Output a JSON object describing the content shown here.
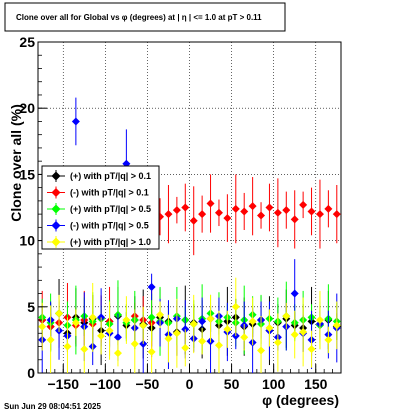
{
  "title": "Clone  over all for Global vs φ  (degrees) at |  η  | <= 1.0 at pT > 0.11",
  "footer": "Sun Jun 29 08:04:51 2025",
  "chart_data": {
    "type": "scatter",
    "xlabel": "φ  (degrees)",
    "ylabel": "Clone  over all (%)",
    "xlim": [
      -180,
      180
    ],
    "ylim": [
      0,
      25
    ],
    "xticks": [
      -150,
      -100,
      -50,
      0,
      50,
      100,
      150
    ],
    "yticks": [
      0,
      5,
      10,
      15,
      20,
      25
    ],
    "grid": true,
    "legend_position": "left",
    "series": [
      {
        "name": "(+) with pT/|q| > 0.1",
        "color": "#000000",
        "x": [
          -175,
          -165,
          -155,
          -145,
          -135,
          -125,
          -115,
          -105,
          -95,
          -85,
          -75,
          -65,
          -55,
          -45,
          -35,
          -25,
          -15,
          -5,
          5,
          15,
          25,
          35,
          45,
          55,
          65,
          75,
          85,
          95,
          105,
          115,
          125,
          135,
          145,
          155,
          165,
          175
        ],
        "y": [
          4.0,
          3.5,
          4.5,
          3.0,
          4.2,
          3.8,
          4.1,
          3.2,
          3.9,
          4.3,
          3.6,
          4.0,
          3.7,
          3.4,
          4.2,
          3.9,
          3.1,
          4.0,
          3.8,
          3.3,
          4.1,
          3.6,
          3.9,
          4.2,
          3.5,
          3.7,
          4.0,
          3.2,
          3.8,
          4.1,
          3.6,
          3.4,
          3.9,
          3.7,
          4.0,
          3.5
        ]
      },
      {
        "name": "(-) with pT/|q| > 0.1",
        "color": "#ff0000",
        "x": [
          -175,
          -165,
          -155,
          -145,
          -135,
          -125,
          -115,
          -105,
          -95,
          -85,
          -75,
          -65,
          -55,
          -45,
          -35,
          -25,
          -15,
          -5,
          5,
          15,
          25,
          35,
          45,
          55,
          65,
          75,
          85,
          95,
          105,
          115,
          125,
          135,
          145,
          155,
          165,
          175
        ],
        "y": [
          4.0,
          3.5,
          3.8,
          4.2,
          3.6,
          4.0,
          3.7,
          4.1,
          3.9,
          12.7,
          12.0,
          4.3,
          4.0,
          3.8,
          11.8,
          12.0,
          12.3,
          12.5,
          11.5,
          12.0,
          12.8,
          12.1,
          11.7,
          12.4,
          12.2,
          12.6,
          11.9,
          12.5,
          12.1,
          12.3,
          11.6,
          12.7,
          12.2,
          12.0,
          12.4,
          12.0
        ]
      },
      {
        "name": "(+) with pT/|q| > 0.5",
        "color": "#00ff00",
        "x": [
          -175,
          -165,
          -155,
          -145,
          -135,
          -125,
          -115,
          -105,
          -95,
          -85,
          -75,
          -65,
          -55,
          -45,
          -35,
          -25,
          -15,
          -5,
          5,
          15,
          25,
          35,
          45,
          55,
          65,
          75,
          85,
          95,
          105,
          115,
          125,
          135,
          145,
          155,
          165,
          175
        ],
        "y": [
          4.2,
          3.8,
          4.5,
          3.6,
          4.0,
          4.3,
          3.9,
          4.1,
          3.7,
          4.4,
          3.8,
          4.0,
          3.6,
          4.2,
          3.9,
          3.8,
          4.3,
          4.0,
          3.7,
          4.1,
          4.5,
          3.9,
          4.2,
          3.8,
          4.0,
          4.4,
          3.7,
          4.1,
          3.9,
          4.3,
          3.8,
          4.0,
          4.2,
          3.6,
          4.1,
          3.9
        ]
      },
      {
        "name": "(-) with pT/|q| > 0.5",
        "color": "#0000ff",
        "x": [
          -175,
          -165,
          -155,
          -145,
          -135,
          -125,
          -115,
          -105,
          -95,
          -85,
          -75,
          -65,
          -55,
          -45,
          -35,
          -25,
          -15,
          -5,
          5,
          15,
          25,
          35,
          45,
          55,
          65,
          75,
          85,
          95,
          105,
          115,
          125,
          135,
          145,
          155,
          165,
          175
        ],
        "y": [
          2.5,
          4.0,
          3.2,
          2.8,
          19.0,
          3.5,
          2.0,
          4.2,
          3.0,
          2.7,
          15.8,
          3.4,
          2.2,
          6.5,
          3.8,
          2.9,
          4.1,
          3.3,
          2.6,
          3.9,
          2.4,
          4.3,
          3.1,
          2.8,
          3.6,
          2.3,
          4.0,
          3.2,
          2.7,
          3.5,
          6.0,
          3.0,
          2.5,
          3.7,
          2.9,
          3.4
        ]
      },
      {
        "name": "(+) with pT/|q| > 1.0",
        "color": "#ffff00",
        "x": [
          -175,
          -165,
          -155,
          -145,
          -135,
          -125,
          -115,
          -105,
          -95,
          -85,
          -75,
          -65,
          -55,
          -45,
          -35,
          -25,
          -15,
          -5,
          5,
          15,
          25,
          35,
          45,
          55,
          65,
          75,
          85,
          95,
          105,
          115,
          125,
          135,
          145,
          155,
          165,
          175
        ],
        "y": [
          3.5,
          2.5,
          4.5,
          2.0,
          3.8,
          1.8,
          4.2,
          2.8,
          3.2,
          1.5,
          4.0,
          2.2,
          3.6,
          1.6,
          4.4,
          2.6,
          3.0,
          1.9,
          3.7,
          2.4,
          4.1,
          2.1,
          3.3,
          5.0,
          2.7,
          3.9,
          1.7,
          3.4,
          2.3,
          4.3,
          2.9,
          3.1,
          1.8,
          4.0,
          2.5,
          3.6
        ]
      }
    ]
  }
}
